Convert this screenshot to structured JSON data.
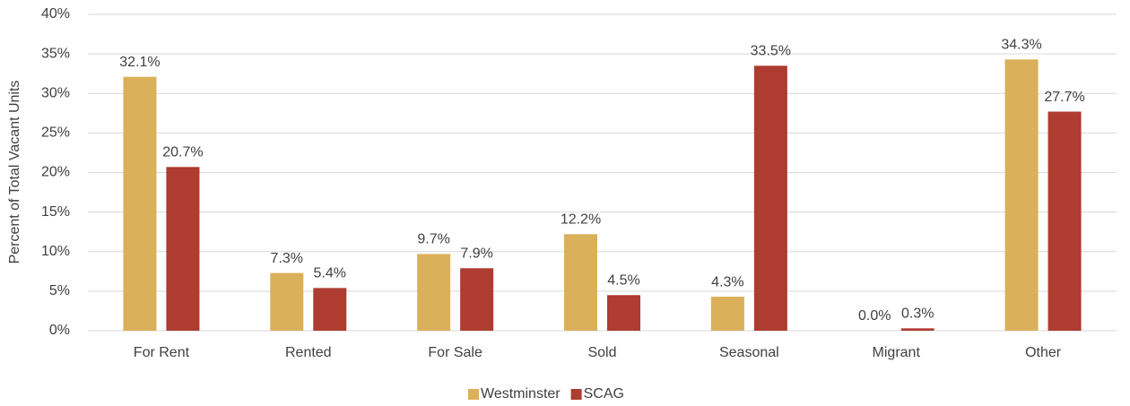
{
  "chart_data": {
    "type": "bar",
    "y_label": "Percent of Total Vacant Units",
    "categories": [
      "For Rent",
      "Rented",
      "For Sale",
      "Sold",
      "Seasonal",
      "Migrant",
      "Other"
    ],
    "series": [
      {
        "name": "Westminster",
        "color": "#dbb05a",
        "values": [
          32.1,
          7.3,
          9.7,
          12.2,
          4.3,
          0.0,
          34.3
        ],
        "value_labels": [
          "32.1%",
          "7.3%",
          "9.7%",
          "12.2%",
          "4.3%",
          "0.0%",
          "34.3%"
        ]
      },
      {
        "name": "SCAG",
        "color": "#ae3c30",
        "values": [
          20.7,
          5.4,
          7.9,
          4.5,
          33.5,
          0.3,
          27.7
        ],
        "value_labels": [
          "20.7%",
          "5.4%",
          "7.9%",
          "4.5%",
          "33.5%",
          "0.3%",
          "27.7%"
        ]
      }
    ],
    "ylim": [
      0,
      40
    ],
    "yticks": [
      {
        "value": 0,
        "label": "0%"
      },
      {
        "value": 5,
        "label": "5%"
      },
      {
        "value": 10,
        "label": "10%"
      },
      {
        "value": 15,
        "label": "15%"
      },
      {
        "value": 20,
        "label": "20%"
      },
      {
        "value": 25,
        "label": "25%"
      },
      {
        "value": 30,
        "label": "30%"
      },
      {
        "value": 35,
        "label": "35%"
      },
      {
        "value": 40,
        "label": "40%"
      }
    ],
    "grid": true,
    "legend": "bottom"
  }
}
